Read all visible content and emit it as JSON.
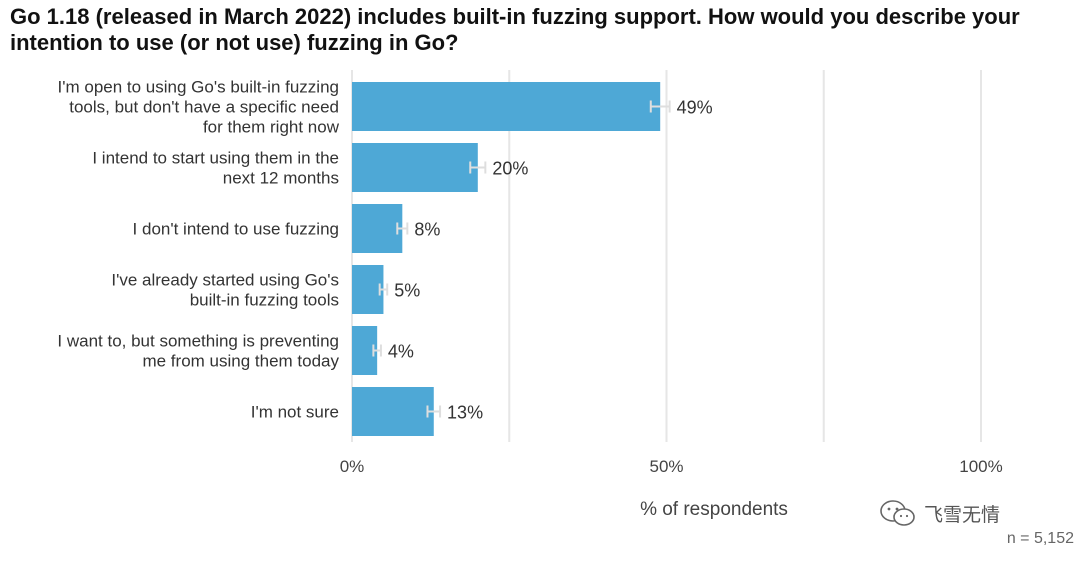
{
  "title": "Go 1.18 (released in March 2022) includes built-in fuzzing support. How would you describe your intention to use (or not use) fuzzing in Go?",
  "watermark": {
    "text": "飞雪无情",
    "icon": "wechat-icon"
  },
  "sample_size": "n =  5,152",
  "colors": {
    "bar": "#4ea8d6",
    "grid": "#e6e6e6",
    "error_bar": "#dedede"
  },
  "chart_data": {
    "type": "bar",
    "orientation": "horizontal",
    "title": "Go 1.18 (released in March 2022) includes built-in fuzzing support. How would you describe your intention to use (or not use) fuzzing in Go?",
    "xlabel": "% of respondents",
    "ylabel": "",
    "xlim": [
      0,
      100
    ],
    "xticks": [
      0,
      50,
      100
    ],
    "xtick_labels": [
      "0%",
      "50%",
      "100%"
    ],
    "grid": true,
    "categories": [
      [
        "I'm open to using Go's built-in fuzzing",
        "tools, but don't have a specific need",
        "for them right now"
      ],
      [
        "I intend to start using them in the",
        "next 12 months"
      ],
      [
        "I don't intend to use fuzzing"
      ],
      [
        "I've already started using Go's",
        "built-in fuzzing tools"
      ],
      [
        "I want to, but something is preventing",
        "me from using them today"
      ],
      [
        "I'm not sure"
      ]
    ],
    "values": [
      49,
      20,
      8,
      5,
      4,
      13
    ],
    "value_labels": [
      "49%",
      "20%",
      "8%",
      "5%",
      "4%",
      "13%"
    ],
    "error_bars": [
      1.5,
      1.2,
      0.8,
      0.6,
      0.6,
      1.0
    ]
  }
}
